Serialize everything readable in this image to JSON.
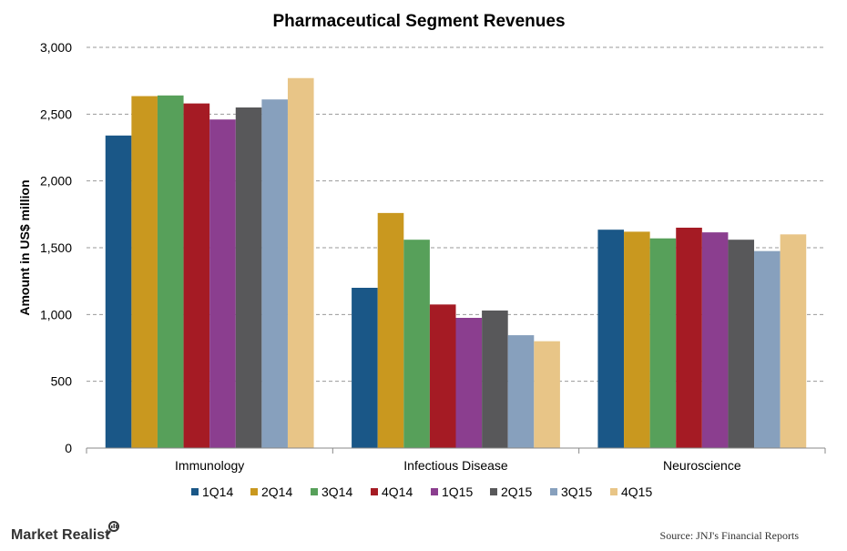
{
  "chart_data": {
    "type": "bar",
    "title": "Pharmaceutical Segment Revenues",
    "ylabel": "Amount in US$  million",
    "xlabel": "",
    "ylim": [
      0,
      3000
    ],
    "yticks": [
      "0",
      "500",
      "1,000",
      "1,500",
      "2,000",
      "2,500",
      "3,000"
    ],
    "ytick_values": [
      0,
      500,
      1000,
      1500,
      2000,
      2500,
      3000
    ],
    "grid": true,
    "legend": "bottom",
    "categories": [
      "Immunology",
      "Infectious Disease",
      "Neuroscience"
    ],
    "series": [
      {
        "name": "1Q14",
        "color": "#1a5787",
        "values": [
          2340,
          1200,
          1635
        ]
      },
      {
        "name": "2Q14",
        "color": "#c9981f",
        "values": [
          2635,
          1760,
          1620
        ]
      },
      {
        "name": "3Q14",
        "color": "#57a05a",
        "values": [
          2640,
          1560,
          1570
        ]
      },
      {
        "name": "4Q14",
        "color": "#a51b24",
        "values": [
          2580,
          1075,
          1650
        ]
      },
      {
        "name": "1Q15",
        "color": "#8b3e8f",
        "values": [
          2460,
          975,
          1615
        ]
      },
      {
        "name": "2Q15",
        "color": "#58585a",
        "values": [
          2550,
          1030,
          1560
        ]
      },
      {
        "name": "3Q15",
        "color": "#87a0bd",
        "values": [
          2610,
          845,
          1475
        ]
      },
      {
        "name": "4Q15",
        "color": "#e8c587",
        "values": [
          2770,
          800,
          1600
        ]
      }
    ]
  },
  "footer": {
    "brand": "Market Realist",
    "brand_icon": "magnifier-icon",
    "source": "Source: JNJ's Financial Reports"
  }
}
